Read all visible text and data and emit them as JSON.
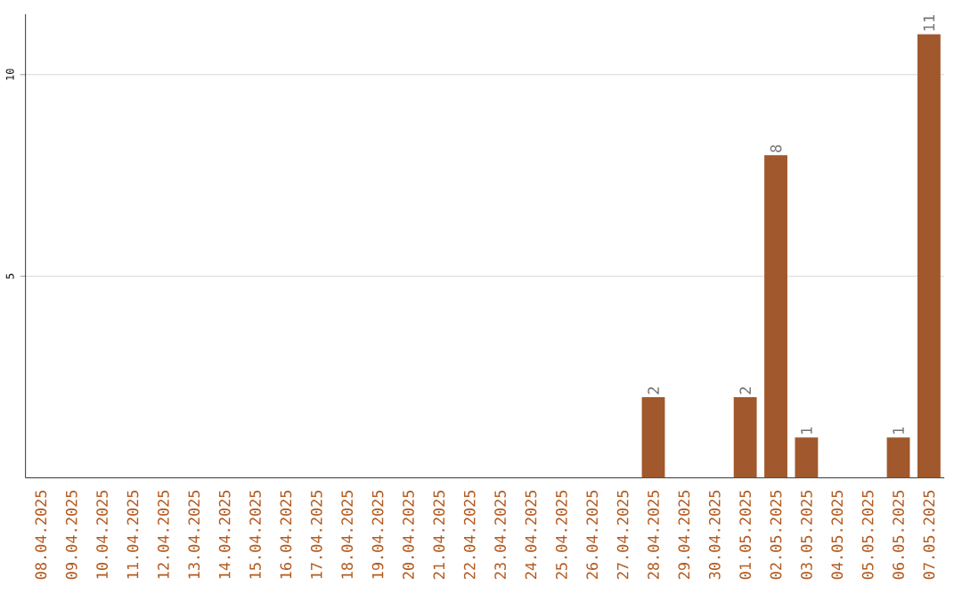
{
  "chart_data": {
    "type": "bar",
    "categories": [
      "08.04.2025",
      "09.04.2025",
      "10.04.2025",
      "11.04.2025",
      "12.04.2025",
      "13.04.2025",
      "14.04.2025",
      "15.04.2025",
      "16.04.2025",
      "17.04.2025",
      "18.04.2025",
      "19.04.2025",
      "20.04.2025",
      "21.04.2025",
      "22.04.2025",
      "23.04.2025",
      "24.04.2025",
      "25.04.2025",
      "26.04.2025",
      "27.04.2025",
      "28.04.2025",
      "29.04.2025",
      "30.04.2025",
      "01.05.2025",
      "02.05.2025",
      "03.05.2025",
      "04.05.2025",
      "05.05.2025",
      "06.05.2025",
      "07.05.2025"
    ],
    "values": [
      0,
      0,
      0,
      0,
      0,
      0,
      0,
      0,
      0,
      0,
      0,
      0,
      0,
      0,
      0,
      0,
      0,
      0,
      0,
      0,
      2,
      0,
      0,
      2,
      8,
      1,
      0,
      0,
      1,
      11
    ],
    "value_labels": [
      null,
      null,
      null,
      null,
      null,
      null,
      null,
      null,
      null,
      null,
      null,
      null,
      null,
      null,
      null,
      null,
      null,
      null,
      null,
      null,
      "2",
      null,
      null,
      "2",
      "8",
      "1",
      null,
      null,
      "1",
      "11"
    ],
    "color": "#a0582c",
    "ylim": [
      0,
      11.5
    ],
    "yticks": [
      5,
      10
    ],
    "grid": "y"
  }
}
